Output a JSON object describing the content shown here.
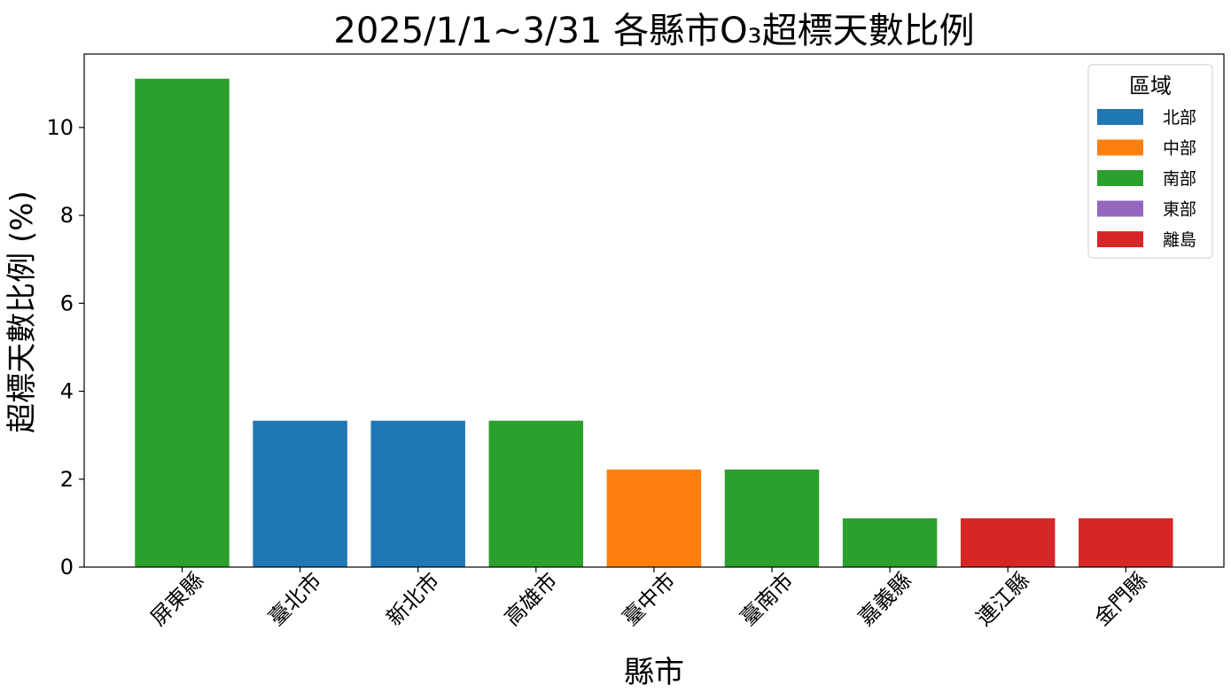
{
  "chart_data": {
    "type": "bar",
    "title": "2025/1/1~3/31 各縣市O₃超標天數比例",
    "xlabel": "縣市",
    "ylabel": "超標天數比例 (%)",
    "ylim": [
      0,
      11.67
    ],
    "yticks": [
      0,
      2,
      4,
      6,
      8,
      10
    ],
    "categories": [
      "屏東縣",
      "臺北市",
      "新北市",
      "高雄市",
      "臺中市",
      "臺南市",
      "嘉義縣",
      "連江縣",
      "金門縣"
    ],
    "values": [
      11.11,
      3.33,
      3.33,
      3.33,
      2.22,
      2.22,
      1.11,
      1.11,
      1.11
    ],
    "regions": [
      "南部",
      "北部",
      "北部",
      "南部",
      "中部",
      "南部",
      "南部",
      "離島",
      "離島"
    ],
    "legend": {
      "title": "區域",
      "placement": "top-right",
      "entries": [
        {
          "label": "北部",
          "color": "#1f77b4"
        },
        {
          "label": "中部",
          "color": "#ff7f0e"
        },
        {
          "label": "南部",
          "color": "#2ca02c"
        },
        {
          "label": "東部",
          "color": "#9467bd"
        },
        {
          "label": "離島",
          "color": "#d62728"
        }
      ]
    },
    "grid": false
  }
}
